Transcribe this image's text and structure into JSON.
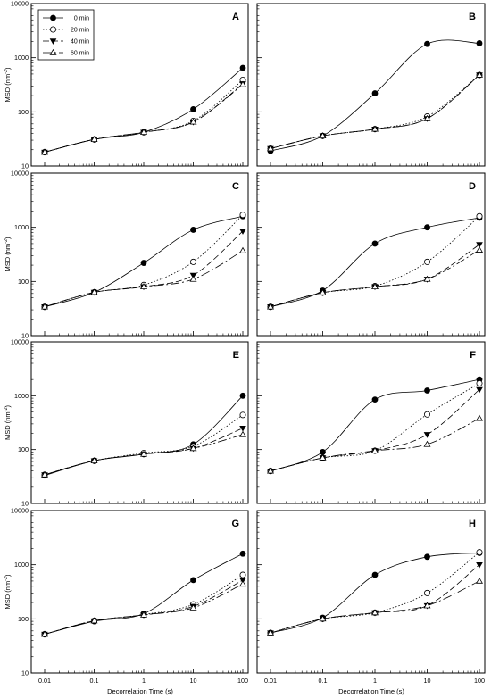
{
  "figure": {
    "ylabel_parts": [
      "MSD (nm",
      "-2",
      ")"
    ],
    "xlabel": "Decorrelation Time (s)"
  },
  "legend": [
    {
      "name": "0 min"
    },
    {
      "name": "20 min"
    },
    {
      "name": "40 min"
    },
    {
      "name": "60 min"
    }
  ],
  "chart_data": [
    {
      "type": "line",
      "label": "A",
      "xscale": "log",
      "yscale": "log",
      "xlim": [
        0.01,
        100
      ],
      "ylim": [
        10,
        10000
      ],
      "x": [
        0.01,
        0.1,
        1,
        10,
        100
      ],
      "xticks": [
        "0.01",
        "0.1",
        "1",
        "10",
        "100"
      ],
      "yticks": [
        "10",
        "100",
        "1000",
        "10000"
      ],
      "series": [
        {
          "name": "0 min",
          "values": [
            18,
            31,
            42,
            112,
            650
          ]
        },
        {
          "name": "20 min",
          "values": [
            18,
            31,
            42,
            68,
            390
          ]
        },
        {
          "name": "40 min",
          "values": [
            18,
            31,
            42,
            65,
            330
          ]
        },
        {
          "name": "60 min",
          "values": [
            18,
            31,
            42,
            65,
            320
          ]
        }
      ]
    },
    {
      "type": "line",
      "label": "B",
      "xscale": "log",
      "yscale": "log",
      "xlim": [
        0.01,
        100
      ],
      "ylim": [
        10,
        10000
      ],
      "x": [
        0.01,
        0.1,
        1,
        10,
        100
      ],
      "xticks": [
        "0.01",
        "0.1",
        "1",
        "10",
        "100"
      ],
      "yticks": [
        "10",
        "100",
        "1000",
        "10000"
      ],
      "series": [
        {
          "name": "0 min",
          "values": [
            19,
            36,
            220,
            1800,
            1850
          ]
        },
        {
          "name": "20 min",
          "values": [
            21,
            36,
            48,
            82,
            480
          ]
        },
        {
          "name": "40 min",
          "values": [
            21,
            36,
            48,
            75,
            480
          ]
        },
        {
          "name": "60 min",
          "values": [
            21,
            36,
            48,
            75,
            480
          ]
        }
      ]
    },
    {
      "type": "line",
      "label": "C",
      "xscale": "log",
      "yscale": "log",
      "xlim": [
        0.01,
        100
      ],
      "ylim": [
        10,
        10000
      ],
      "x": [
        0.01,
        0.1,
        1,
        10,
        100
      ],
      "xticks": [
        "0.01",
        "0.1",
        "1",
        "10",
        "100"
      ],
      "yticks": [
        "10",
        "100",
        "1000",
        "10000"
      ],
      "series": [
        {
          "name": "0 min",
          "values": [
            34,
            63,
            220,
            900,
            1600
          ]
        },
        {
          "name": "20 min",
          "values": [
            34,
            63,
            86,
            230,
            1700
          ]
        },
        {
          "name": "40 min",
          "values": [
            34,
            63,
            80,
            130,
            850
          ]
        },
        {
          "name": "60 min",
          "values": [
            34,
            63,
            80,
            110,
            370
          ]
        }
      ]
    },
    {
      "type": "line",
      "label": "D",
      "xscale": "log",
      "yscale": "log",
      "xlim": [
        0.01,
        100
      ],
      "ylim": [
        10,
        10000
      ],
      "x": [
        0.01,
        0.1,
        1,
        10,
        100
      ],
      "xticks": [
        "0.01",
        "0.1",
        "1",
        "10",
        "100"
      ],
      "yticks": [
        "10",
        "100",
        "1000",
        "10000"
      ],
      "series": [
        {
          "name": "0 min",
          "values": [
            34,
            68,
            500,
            1000,
            1500
          ]
        },
        {
          "name": "20 min",
          "values": [
            34,
            62,
            82,
            230,
            1600
          ]
        },
        {
          "name": "40 min",
          "values": [
            34,
            62,
            80,
            110,
            480
          ]
        },
        {
          "name": "60 min",
          "values": [
            34,
            62,
            80,
            110,
            380
          ]
        }
      ]
    },
    {
      "type": "line",
      "label": "E",
      "xscale": "log",
      "yscale": "log",
      "xlim": [
        0.01,
        100
      ],
      "ylim": [
        10,
        10000
      ],
      "x": [
        0.01,
        0.1,
        1,
        10,
        100
      ],
      "xticks": [
        "0.01",
        "0.1",
        "1",
        "10",
        "100"
      ],
      "yticks": [
        "10",
        "100",
        "1000",
        "10000"
      ],
      "series": [
        {
          "name": "0 min",
          "values": [
            33,
            62,
            82,
            125,
            1000
          ]
        },
        {
          "name": "20 min",
          "values": [
            34,
            62,
            86,
            115,
            440
          ]
        },
        {
          "name": "40 min",
          "values": [
            34,
            62,
            82,
            105,
            250
          ]
        },
        {
          "name": "60 min",
          "values": [
            34,
            62,
            82,
            105,
            190
          ]
        }
      ]
    },
    {
      "type": "line",
      "label": "F",
      "xscale": "log",
      "yscale": "log",
      "xlim": [
        0.01,
        100
      ],
      "ylim": [
        10,
        10000
      ],
      "x": [
        0.01,
        0.1,
        1,
        10,
        100
      ],
      "xticks": [
        "0.01",
        "0.1",
        "1",
        "10",
        "100"
      ],
      "yticks": [
        "10",
        "100",
        "1000",
        "10000"
      ],
      "series": [
        {
          "name": "0 min",
          "values": [
            40,
            90,
            850,
            1250,
            2000
          ]
        },
        {
          "name": "20 min",
          "values": [
            40,
            70,
            95,
            450,
            1700
          ]
        },
        {
          "name": "40 min",
          "values": [
            40,
            70,
            95,
            190,
            1300
          ]
        },
        {
          "name": "60 min",
          "values": [
            40,
            70,
            95,
            125,
            380
          ]
        }
      ]
    },
    {
      "type": "line",
      "label": "G",
      "xscale": "log",
      "yscale": "log",
      "xlim": [
        0.01,
        100
      ],
      "ylim": [
        10,
        10000
      ],
      "x": [
        0.01,
        0.1,
        1,
        10,
        100
      ],
      "xticks": [
        "0.01",
        "0.1",
        "1",
        "10",
        "100"
      ],
      "yticks": [
        "10",
        "100",
        "1000",
        "10000"
      ],
      "series": [
        {
          "name": "0 min",
          "values": [
            52,
            90,
            125,
            520,
            1600
          ]
        },
        {
          "name": "20 min",
          "values": [
            52,
            92,
            120,
            185,
            650
          ]
        },
        {
          "name": "40 min",
          "values": [
            52,
            92,
            118,
            170,
            520
          ]
        },
        {
          "name": "60 min",
          "values": [
            52,
            92,
            118,
            160,
            440
          ]
        }
      ]
    },
    {
      "type": "line",
      "label": "H",
      "xscale": "log",
      "yscale": "log",
      "xlim": [
        0.01,
        100
      ],
      "ylim": [
        10,
        10000
      ],
      "x": [
        0.01,
        0.1,
        1,
        10,
        100
      ],
      "xticks": [
        "0.01",
        "0.1",
        "1",
        "10",
        "100"
      ],
      "yticks": [
        "10",
        "100",
        "1000",
        "10000"
      ],
      "series": [
        {
          "name": "0 min",
          "values": [
            55,
            105,
            650,
            1400,
            1650
          ]
        },
        {
          "name": "20 min",
          "values": [
            55,
            100,
            130,
            300,
            1700
          ]
        },
        {
          "name": "40 min",
          "values": [
            55,
            100,
            130,
            175,
            1000
          ]
        },
        {
          "name": "60 min",
          "values": [
            55,
            100,
            130,
            175,
            500
          ]
        }
      ]
    }
  ]
}
